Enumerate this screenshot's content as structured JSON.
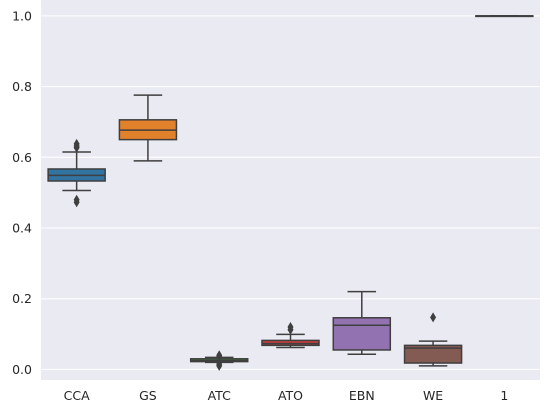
{
  "chart_data": {
    "type": "box",
    "title": "",
    "xlabel": "",
    "ylabel": "",
    "categories": [
      "CCA",
      "GS",
      "ATC",
      "ATO",
      "EBN",
      "WE",
      "1"
    ],
    "ylim": [
      -0.03,
      1.045
    ],
    "yticks": [
      0.0,
      0.2,
      0.4,
      0.6,
      0.8,
      1.0
    ],
    "ytick_labels": [
      "0.0",
      "0.2",
      "0.4",
      "0.6",
      "0.8",
      "1.0"
    ],
    "grid": true,
    "background": "#eaeaf2",
    "boxes": [
      {
        "category": "CCA",
        "color": "#3274a1",
        "whisker_low": 0.506,
        "q1": 0.533,
        "median": 0.549,
        "q3": 0.567,
        "whisker_high": 0.615,
        "outliers": [
          0.473,
          0.48,
          0.627,
          0.632,
          0.638
        ]
      },
      {
        "category": "GS",
        "color": "#e1812c",
        "whisker_low": 0.59,
        "q1": 0.65,
        "median": 0.677,
        "q3": 0.706,
        "whisker_high": 0.776,
        "outliers": []
      },
      {
        "category": "ATC",
        "color": "#3a923a",
        "whisker_low": 0.02,
        "q1": 0.022,
        "median": 0.025,
        "q3": 0.03,
        "whisker_high": 0.034,
        "outliers": [
          0.01,
          0.015,
          0.036,
          0.04
        ]
      },
      {
        "category": "ATO",
        "color": "#c03d3e",
        "whisker_low": 0.062,
        "q1": 0.068,
        "median": 0.073,
        "q3": 0.082,
        "whisker_high": 0.099,
        "outliers": [
          0.112,
          0.12
        ]
      },
      {
        "category": "EBN",
        "color": "#9372b2",
        "whisker_low": 0.043,
        "q1": 0.055,
        "median": 0.125,
        "q3": 0.146,
        "whisker_high": 0.22,
        "outliers": []
      },
      {
        "category": "WE",
        "color": "#845b53",
        "whisker_low": 0.01,
        "q1": 0.018,
        "median": 0.06,
        "q3": 0.068,
        "whisker_high": 0.08,
        "outliers": [
          0.147
        ]
      },
      {
        "category": "1",
        "color": "#d684bd",
        "whisker_low": 1.0,
        "q1": 1.0,
        "median": 1.0,
        "q3": 1.0,
        "whisker_high": 1.0,
        "outliers": []
      }
    ]
  }
}
